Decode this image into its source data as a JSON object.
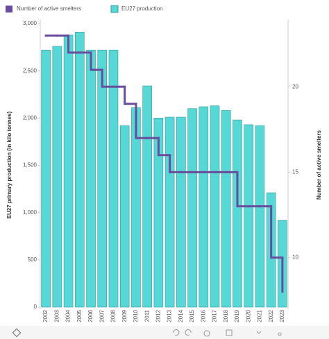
{
  "chart_data": {
    "type": "bar",
    "legend": {
      "position": "top"
    },
    "categories": [
      "2002",
      "2003",
      "2004",
      "2005",
      "2006",
      "2007",
      "2008",
      "2009",
      "2010",
      "2011",
      "2012",
      "2013",
      "2014",
      "2015",
      "2016",
      "2017",
      "2018",
      "2019",
      "2020",
      "2021",
      "2022",
      "2023"
    ],
    "series": [
      {
        "name": "EU27 production",
        "type": "bar",
        "color": "#56d8d6",
        "values": [
          2720,
          2760,
          2880,
          2910,
          2720,
          2720,
          2720,
          1920,
          2110,
          2340,
          2000,
          2010,
          2010,
          2100,
          2120,
          2130,
          2080,
          1980,
          1930,
          1920,
          1210,
          920
        ]
      },
      {
        "name": "Number of active smelters",
        "type": "step",
        "axis": "y2",
        "color": "#6a4c9c",
        "values": [
          23,
          23,
          22,
          22,
          21,
          20,
          20,
          19,
          17,
          17,
          16,
          15,
          15,
          15,
          15,
          15,
          15,
          13,
          13,
          13,
          10,
          8
        ]
      }
    ],
    "ylabel": "EU27 primary production (in kilo tonnes)",
    "y2label": "Number of active smelters",
    "ylim": [
      0,
      3000
    ],
    "yticks": [
      0,
      500,
      {
        "value": 1000,
        "label": "1,000"
      },
      {
        "value": 1500,
        "label": "1,500"
      },
      {
        "value": 2000,
        "label": "2,000"
      },
      {
        "value": 2500,
        "label": "2,500"
      },
      {
        "value": 3000,
        "label": "3,000"
      }
    ],
    "y2lim": [
      7.1,
      23.7
    ],
    "y2ticks": [
      10,
      15,
      20
    ]
  },
  "footer": {
    "link": "View on Tableau Public",
    "share": "Share"
  }
}
